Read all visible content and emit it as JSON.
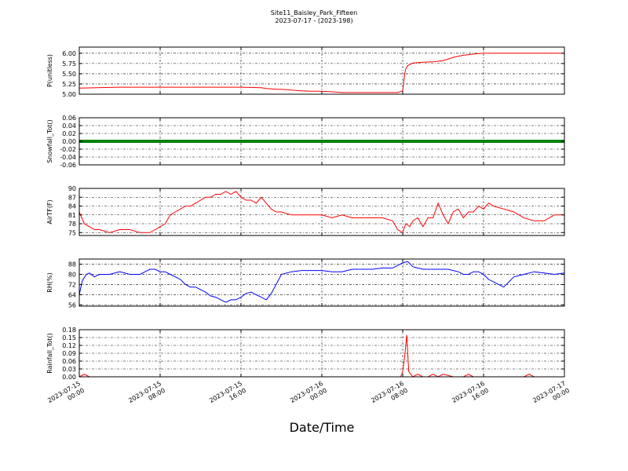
{
  "figure": {
    "title": "Site11_Baisley_Park_Fifteen",
    "subtitle": "2023-07-17 - (2023-198)",
    "xlabel": "Date/Time"
  },
  "chart_data": [
    {
      "type": "line",
      "ylabel": "P(unitless)",
      "ylim": [
        5.0,
        6.15
      ],
      "yticks": [
        "5.00",
        "5.25",
        "5.50",
        "5.75",
        "6.00"
      ],
      "ytick_values": [
        5.0,
        5.25,
        5.5,
        5.75,
        6.0
      ],
      "grid": true,
      "series": [
        {
          "color": "#ff0000",
          "x": [
            0,
            4,
            6,
            8,
            10,
            12,
            14,
            16,
            18,
            18.5,
            19,
            19.5,
            20,
            20.5,
            21,
            22,
            23,
            24,
            25,
            26,
            28,
            30,
            31,
            31.5,
            32,
            32.1,
            32.2,
            32.3,
            32.5,
            33,
            34,
            35,
            36,
            36.5,
            37,
            38,
            39,
            40,
            42,
            44,
            46,
            48
          ],
          "y": [
            5.15,
            5.17,
            5.17,
            5.17,
            5.17,
            5.17,
            5.17,
            5.17,
            5.16,
            5.14,
            5.13,
            5.12,
            5.12,
            5.11,
            5.1,
            5.08,
            5.07,
            5.07,
            5.06,
            5.04,
            5.04,
            5.04,
            5.04,
            5.04,
            5.08,
            5.3,
            5.5,
            5.62,
            5.7,
            5.76,
            5.78,
            5.79,
            5.82,
            5.86,
            5.9,
            5.95,
            5.98,
            6.0,
            6.0,
            6.0,
            6.0,
            6.0
          ]
        }
      ]
    },
    {
      "type": "line",
      "ylabel": "Snowfall_Tot()",
      "ylim": [
        -0.06,
        0.06
      ],
      "yticks": [
        "-0.06",
        "-0.04",
        "-0.02",
        "0.00",
        "0.02",
        "0.04",
        "0.06"
      ],
      "ytick_values": [
        -0.06,
        -0.04,
        -0.02,
        0,
        0.02,
        0.04,
        0.06
      ],
      "grid": true,
      "series": [
        {
          "color": "#008000",
          "x": [
            0,
            48
          ],
          "y": [
            0,
            0
          ]
        }
      ]
    },
    {
      "type": "line",
      "ylabel": "AirTF(F)",
      "ylim": [
        74,
        90
      ],
      "yticks": [
        "75",
        "78",
        "81",
        "84",
        "87",
        "90"
      ],
      "ytick_values": [
        75,
        78,
        81,
        84,
        87,
        90
      ],
      "grid": true,
      "series": [
        {
          "color": "#ff0000",
          "x": [
            0,
            0.5,
            1,
            1.5,
            2,
            3,
            4,
            5,
            6,
            6.5,
            7,
            7.5,
            8,
            8.5,
            9,
            9.5,
            10,
            10.5,
            11,
            11.5,
            12,
            12.5,
            13,
            13.5,
            14,
            14.5,
            15,
            15.5,
            16,
            16.5,
            17,
            17.5,
            18,
            18.5,
            19,
            19.5,
            20,
            21,
            22,
            23,
            24,
            25,
            26,
            27,
            28,
            29,
            30,
            31,
            31.5,
            32,
            32.3,
            32.7,
            33,
            33.5,
            34,
            34.5,
            35,
            35.5,
            36,
            36.5,
            37,
            37.5,
            38,
            38.5,
            39,
            39.5,
            40,
            40.5,
            41,
            42,
            43,
            44,
            45,
            46,
            47,
            48
          ],
          "y": [
            82,
            78,
            77,
            76,
            76,
            75,
            76,
            76,
            75,
            75,
            75,
            76,
            77,
            78,
            81,
            82,
            83,
            84,
            84,
            85,
            86,
            87,
            87,
            88,
            88,
            89,
            88,
            89,
            87,
            86,
            86,
            85,
            87,
            85,
            83,
            82,
            82,
            81,
            81,
            81,
            81,
            80,
            81,
            80,
            80,
            80,
            80,
            79,
            76,
            75,
            78,
            77,
            79,
            80,
            77,
            80,
            80,
            85,
            81,
            78,
            82,
            83,
            80,
            82,
            82,
            84,
            83,
            85,
            84,
            83,
            82,
            80,
            79,
            79,
            81,
            81
          ]
        }
      ]
    },
    {
      "type": "line",
      "ylabel": "RH(%)",
      "ylim": [
        55,
        92
      ],
      "yticks": [
        "56",
        "64",
        "72",
        "80",
        "88"
      ],
      "ytick_values": [
        56,
        64,
        72,
        80,
        88
      ],
      "grid": true,
      "series": [
        {
          "color": "#0000ff",
          "x": [
            0,
            0.3,
            0.7,
            1,
            1.5,
            2,
            3,
            4,
            5,
            6,
            6.5,
            7,
            7.5,
            8,
            8.5,
            9,
            9.5,
            10,
            10.5,
            11,
            11.5,
            12,
            12.5,
            13,
            13.5,
            14,
            14.5,
            15,
            15.5,
            16,
            16.5,
            17,
            17.5,
            18,
            18.5,
            19,
            20,
            21,
            22,
            23,
            24,
            25,
            26,
            27,
            28,
            29,
            30,
            31,
            32,
            32.5,
            33,
            33.5,
            34,
            35,
            36,
            36.5,
            37,
            37.5,
            38,
            38.5,
            39,
            39.5,
            40,
            40.5,
            41,
            42,
            43,
            44,
            45,
            46,
            47,
            48
          ],
          "y": [
            64,
            75,
            80,
            81,
            78,
            80,
            80,
            82,
            80,
            80,
            82,
            84,
            84,
            82,
            82,
            80,
            78,
            76,
            72,
            70,
            70,
            68,
            66,
            63,
            62,
            60,
            58,
            60,
            60,
            62,
            65,
            66,
            64,
            62,
            60,
            65,
            80,
            82,
            83,
            83,
            83,
            82,
            82,
            84,
            84,
            84,
            85,
            85,
            89,
            90,
            86,
            85,
            84,
            84,
            84,
            84,
            83,
            82,
            80,
            80,
            82,
            82,
            80,
            76,
            74,
            70,
            78,
            80,
            82,
            81,
            80,
            81
          ]
        }
      ]
    },
    {
      "type": "line",
      "ylabel": "Rainfall_Tot()",
      "ylim": [
        0,
        0.18
      ],
      "yticks": [
        "0.00",
        "0.03",
        "0.06",
        "0.09",
        "0.12",
        "0.15",
        "0.18"
      ],
      "ytick_values": [
        0,
        0.03,
        0.06,
        0.09,
        0.12,
        0.15,
        0.18
      ],
      "grid": true,
      "series": [
        {
          "color": "#ff0000",
          "x": [
            0,
            0.5,
            1,
            31.8,
            32.0,
            32.2,
            32.4,
            32.6,
            32.8,
            33.0,
            33.5,
            34,
            34.5,
            35,
            35.5,
            36,
            37,
            38,
            38.5,
            39,
            44,
            44.5,
            45,
            48
          ],
          "y": [
            0,
            0.01,
            0,
            0,
            0.02,
            0.08,
            0.16,
            0.02,
            0.01,
            0,
            0.01,
            0,
            0,
            0.01,
            0,
            0.01,
            0,
            0,
            0.01,
            0,
            0,
            0.01,
            0,
            0
          ]
        }
      ]
    }
  ],
  "x_axis": {
    "range": [
      0,
      48
    ],
    "ticks": [
      {
        "value": 0,
        "line1": "2023-07-15",
        "line2": "00:00"
      },
      {
        "value": 8,
        "line1": "2023-07-15",
        "line2": "08:00"
      },
      {
        "value": 16,
        "line1": "2023-07-15",
        "line2": "16:00"
      },
      {
        "value": 24,
        "line1": "2023-07-16",
        "line2": "00:00"
      },
      {
        "value": 32,
        "line1": "2023-07-16",
        "line2": "08:00"
      },
      {
        "value": 40,
        "line1": "2023-07-16",
        "line2": "16:00"
      },
      {
        "value": 48,
        "line1": "2023-07-17",
        "line2": "00:00"
      }
    ]
  }
}
